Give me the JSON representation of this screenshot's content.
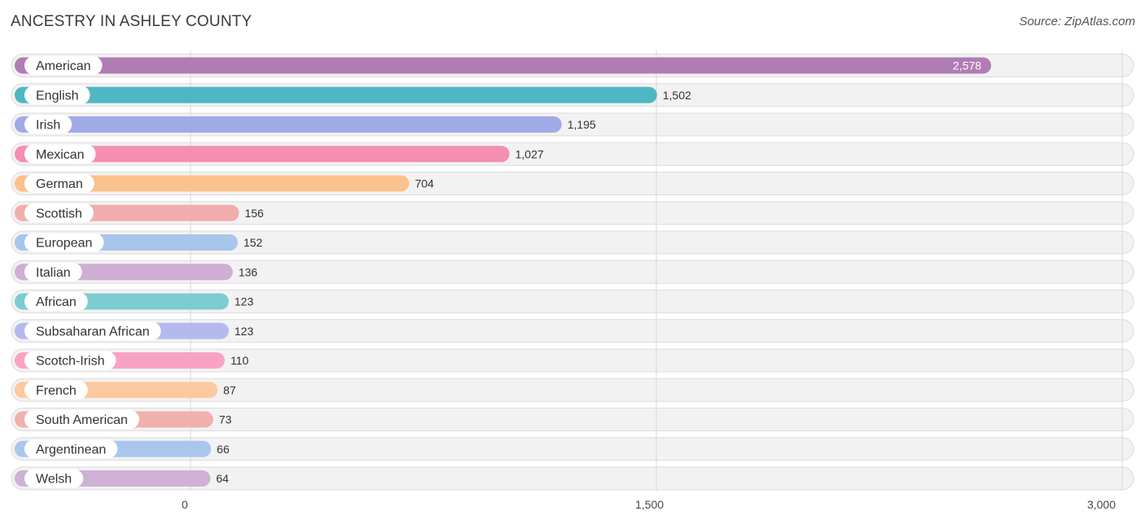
{
  "header": {
    "title": "ANCESTRY IN ASHLEY COUNTY",
    "source": "Source: ZipAtlas.com"
  },
  "chart_data": {
    "type": "bar",
    "orientation": "horizontal",
    "title": "ANCESTRY IN ASHLEY COUNTY",
    "xlabel": "",
    "ylabel": "",
    "xlim": [
      0,
      3000
    ],
    "ticks": [
      0,
      1500,
      3000
    ],
    "tick_labels": [
      "0",
      "1,500",
      "3,000"
    ],
    "categories": [
      "American",
      "English",
      "Irish",
      "Mexican",
      "German",
      "Scottish",
      "European",
      "Italian",
      "African",
      "Subsaharan African",
      "Scotch-Irish",
      "French",
      "South American",
      "Argentinean",
      "Welsh"
    ],
    "values": [
      2578,
      1502,
      1195,
      1027,
      704,
      156,
      152,
      136,
      123,
      123,
      110,
      87,
      73,
      66,
      64
    ],
    "value_labels": [
      "2,578",
      "1,502",
      "1,195",
      "1,027",
      "704",
      "156",
      "152",
      "136",
      "123",
      "123",
      "110",
      "87",
      "73",
      "66",
      "64"
    ],
    "colors": [
      "#b07cb5",
      "#4fb6c5",
      "#a1aae6",
      "#f58eb0",
      "#fbc28d",
      "#f0adac",
      "#a8c6eb",
      "#cfaed3",
      "#7cccd2",
      "#b5b9ee",
      "#f9a3c3",
      "#fcc9a0",
      "#f0b0ad",
      "#a9c6ec",
      "#cfb1d5"
    ]
  }
}
